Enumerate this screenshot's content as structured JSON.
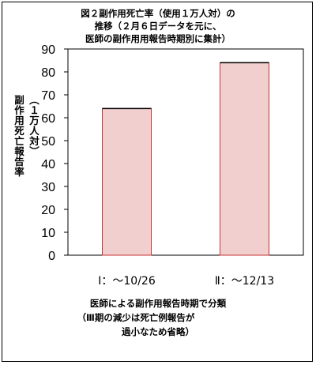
{
  "chart_data": {
    "type": "bar",
    "title_lines": [
      "図２副作用死亡率（使用１万人対）の",
      "推移（２月６日データを元に、",
      "医師の副作用用報告時期別に集計）"
    ],
    "ylabel_lines": [
      "副作用死亡報告率",
      "（１万人対）"
    ],
    "categories": [
      "Ⅰ：～10/26",
      "Ⅱ：～12/13"
    ],
    "values": [
      64,
      84
    ],
    "ylim": [
      0,
      90
    ],
    "yticks": [
      "0",
      "10",
      "20",
      "30",
      "40",
      "50",
      "60",
      "70",
      "80",
      "90"
    ],
    "xlabel_lines": [
      "医師による副作用報告時期で分類",
      "（Ⅲ期の減少は死亡例報告が",
      "過小なため省略）"
    ],
    "bar_color": "#f2cfcf",
    "bar_border_color": "#c83232",
    "grid": false,
    "legend": false
  }
}
